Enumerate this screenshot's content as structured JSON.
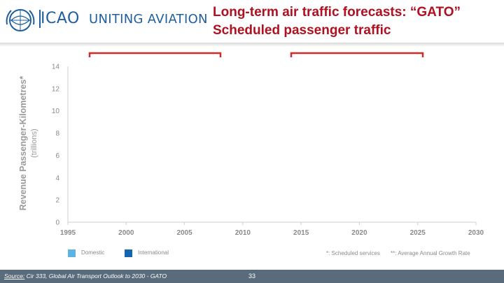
{
  "header": {
    "logo_text": "ICAO",
    "tagline": "UNITING AVIATION",
    "title_line1": "Long-term air traffic forecasts: “GATO”",
    "title_line2": "Scheduled passenger traffic"
  },
  "chart_data": {
    "type": "bar",
    "ylabel": "Revenue Passenger-Kilometres*",
    "ylabel_sub": "(trillions)",
    "ylim": [
      0,
      14
    ],
    "y_ticks": [
      0,
      2,
      4,
      6,
      8,
      10,
      12,
      14
    ],
    "x_ticks": [
      1995,
      2000,
      2005,
      2010,
      2015,
      2020,
      2025,
      2030
    ],
    "xlim": [
      1995,
      2030
    ],
    "series": [
      {
        "name": "Domestic",
        "color": "#5db3e4",
        "values": []
      },
      {
        "name": "International",
        "color": "#1565b0",
        "values": []
      }
    ],
    "notes": [
      "*: Scheduled services",
      "**: Average Annual Growth Rate"
    ]
  },
  "footer": {
    "source_label": "Source:",
    "source_text": " Cir 333, Global Air Transport Outlook to 2030 - GATO",
    "page_number": "33"
  },
  "colors": {
    "accent": "#b01020",
    "brand": "#1f5f9e",
    "footer_bg": "#5a6b7b"
  }
}
